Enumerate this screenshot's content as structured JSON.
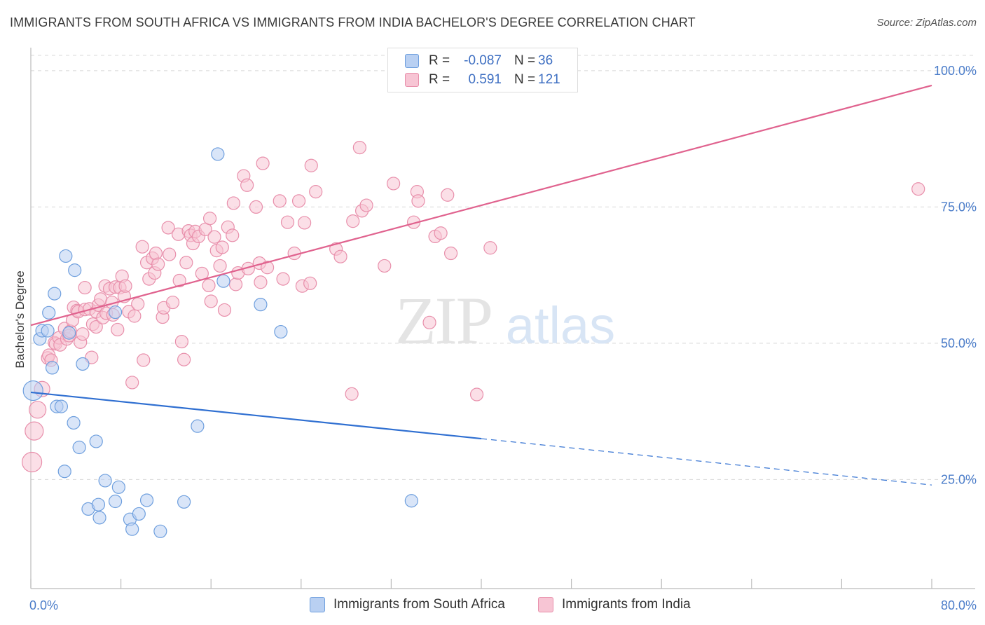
{
  "title": "IMMIGRANTS FROM SOUTH AFRICA VS IMMIGRANTS FROM INDIA BACHELOR'S DEGREE CORRELATION CHART",
  "source": "Source: ZipAtlas.com",
  "watermark": {
    "zip": "ZIP",
    "atlas": "atlas"
  },
  "colors": {
    "blue_fill": "#b9d0f2",
    "blue_stroke": "#6e9fde",
    "blue_line": "#2f6fd1",
    "pink_fill": "#f7c5d4",
    "pink_stroke": "#e88fab",
    "pink_line": "#e0628e",
    "grid": "#d8d8d8",
    "tick_text": "#4a7cc9"
  },
  "legend": {
    "rows": [
      {
        "r_label": "R =",
        "r_value": "-0.087",
        "n_label": "N =",
        "n_value": "36",
        "color": "#b9d0f2",
        "stroke": "#6e9fde"
      },
      {
        "r_label": "R =",
        "r_value": "0.591",
        "n_label": "N =",
        "n_value": "121",
        "color": "#f7c5d4",
        "stroke": "#e88fab"
      }
    ]
  },
  "chart_data": {
    "type": "scatter",
    "xlabel": "",
    "ylabel": "Bachelor's Degree",
    "xlim": [
      0,
      80
    ],
    "ylim": [
      5,
      105
    ],
    "x_tick_labels": [
      "0.0%",
      "80.0%"
    ],
    "y_ticks": [
      25,
      50,
      75,
      100
    ],
    "y_tick_labels": [
      "25.0%",
      "50.0%",
      "75.0%",
      "100.0%"
    ],
    "grid": true,
    "legend_position": "bottom",
    "series": [
      {
        "name": "Immigrants from South Africa",
        "color": "#b9d0f2",
        "trend": {
          "x": [
            0,
            40
          ],
          "y": [
            41,
            32.5
          ],
          "dashed_to": [
            80,
            24.0
          ]
        },
        "points": [
          [
            0.2,
            41.3,
            14
          ],
          [
            0.8,
            50.8,
            9
          ],
          [
            1.0,
            52.3,
            9
          ],
          [
            1.5,
            52.3,
            9
          ],
          [
            1.6,
            55.6,
            9
          ],
          [
            1.9,
            45.5,
            9
          ],
          [
            2.1,
            59.1,
            9
          ],
          [
            2.3,
            38.4,
            9
          ],
          [
            2.7,
            38.4,
            9
          ],
          [
            3.0,
            26.5,
            9
          ],
          [
            3.1,
            66.0,
            9
          ],
          [
            3.4,
            51.9,
            9
          ],
          [
            3.8,
            35.4,
            9
          ],
          [
            3.9,
            63.4,
            9
          ],
          [
            4.3,
            30.9,
            9
          ],
          [
            4.6,
            46.2,
            9
          ],
          [
            5.1,
            19.6,
            9
          ],
          [
            5.8,
            32.0,
            9
          ],
          [
            6.0,
            20.4,
            9
          ],
          [
            6.1,
            18.0,
            9
          ],
          [
            6.6,
            24.8,
            9
          ],
          [
            7.5,
            55.7,
            9
          ],
          [
            7.5,
            21.0,
            9
          ],
          [
            7.8,
            23.6,
            9
          ],
          [
            8.8,
            17.7,
            9
          ],
          [
            9.0,
            15.9,
            9
          ],
          [
            9.6,
            18.7,
            9
          ],
          [
            10.3,
            21.2,
            9
          ],
          [
            11.5,
            15.5,
            9
          ],
          [
            13.6,
            20.9,
            9
          ],
          [
            14.8,
            34.8,
            9
          ],
          [
            16.6,
            84.7,
            9
          ],
          [
            17.1,
            61.4,
            9
          ],
          [
            20.4,
            57.1,
            9
          ],
          [
            22.2,
            52.1,
            9
          ],
          [
            33.8,
            21.1,
            9
          ]
        ]
      },
      {
        "name": "Immigrants from India",
        "color": "#f7c5d4",
        "trend": {
          "x": [
            0,
            80
          ],
          "y": [
            53.3,
            97.3
          ]
        },
        "points": [
          [
            0.1,
            28.2,
            14
          ],
          [
            0.3,
            33.9,
            13
          ],
          [
            0.6,
            37.8,
            12
          ],
          [
            1.0,
            41.6,
            11
          ],
          [
            1.5,
            47.3,
            9
          ],
          [
            1.6,
            47.8,
            9
          ],
          [
            1.8,
            46.9,
            9
          ],
          [
            2.1,
            50.1,
            9
          ],
          [
            2.2,
            49.9,
            9
          ],
          [
            2.5,
            51.0,
            9
          ],
          [
            2.6,
            49.7,
            9
          ],
          [
            3.0,
            52.7,
            9
          ],
          [
            3.2,
            50.8,
            9
          ],
          [
            3.4,
            51.4,
            9
          ],
          [
            3.5,
            52.2,
            9
          ],
          [
            3.7,
            54.2,
            9
          ],
          [
            3.8,
            56.6,
            9
          ],
          [
            4.1,
            56.0,
            9
          ],
          [
            4.2,
            55.8,
            9
          ],
          [
            4.4,
            50.2,
            9
          ],
          [
            4.6,
            51.7,
            9
          ],
          [
            4.8,
            56.2,
            9
          ],
          [
            4.8,
            60.2,
            9
          ],
          [
            5.2,
            56.3,
            9
          ],
          [
            5.4,
            47.4,
            9
          ],
          [
            5.5,
            53.5,
            9
          ],
          [
            5.8,
            53.0,
            9
          ],
          [
            5.8,
            55.8,
            9
          ],
          [
            6.0,
            57.0,
            9
          ],
          [
            6.2,
            58.1,
            9
          ],
          [
            6.4,
            54.7,
            9
          ],
          [
            6.6,
            60.5,
            9
          ],
          [
            6.7,
            55.5,
            9
          ],
          [
            7.0,
            60.0,
            9
          ],
          [
            7.2,
            57.5,
            9
          ],
          [
            7.3,
            55.2,
            9
          ],
          [
            7.5,
            60.3,
            9
          ],
          [
            7.7,
            52.5,
            9
          ],
          [
            7.9,
            60.2,
            9
          ],
          [
            8.1,
            62.3,
            9
          ],
          [
            8.3,
            58.6,
            9
          ],
          [
            8.4,
            60.5,
            9
          ],
          [
            8.7,
            55.8,
            9
          ],
          [
            9.0,
            42.8,
            9
          ],
          [
            9.2,
            55.0,
            9
          ],
          [
            9.5,
            57.2,
            9
          ],
          [
            9.9,
            67.7,
            9
          ],
          [
            10.0,
            46.9,
            9
          ],
          [
            10.3,
            64.8,
            9
          ],
          [
            10.5,
            61.8,
            9
          ],
          [
            10.8,
            65.6,
            9
          ],
          [
            11.0,
            62.9,
            9
          ],
          [
            11.1,
            66.5,
            9
          ],
          [
            11.3,
            64.5,
            9
          ],
          [
            11.7,
            54.8,
            9
          ],
          [
            11.8,
            56.5,
            9
          ],
          [
            12.2,
            71.2,
            9
          ],
          [
            12.3,
            66.3,
            9
          ],
          [
            12.6,
            57.5,
            9
          ],
          [
            13.1,
            70.0,
            9
          ],
          [
            13.2,
            61.5,
            9
          ],
          [
            13.4,
            50.3,
            9
          ],
          [
            13.6,
            47.0,
            9
          ],
          [
            13.8,
            64.8,
            9
          ],
          [
            14.0,
            70.6,
            9
          ],
          [
            14.2,
            69.8,
            9
          ],
          [
            14.4,
            68.3,
            9
          ],
          [
            14.6,
            70.5,
            9
          ],
          [
            14.9,
            69.6,
            9
          ],
          [
            15.2,
            62.8,
            9
          ],
          [
            15.5,
            70.9,
            9
          ],
          [
            15.8,
            60.6,
            9
          ],
          [
            15.9,
            72.9,
            9
          ],
          [
            16.0,
            57.7,
            9
          ],
          [
            16.3,
            69.5,
            9
          ],
          [
            16.5,
            67.0,
            9
          ],
          [
            16.8,
            64.2,
            9
          ],
          [
            17.0,
            67.6,
            9
          ],
          [
            17.2,
            56.1,
            9
          ],
          [
            17.5,
            71.3,
            9
          ],
          [
            17.9,
            69.8,
            9
          ],
          [
            18.0,
            75.7,
            9
          ],
          [
            18.2,
            60.8,
            9
          ],
          [
            18.4,
            62.9,
            9
          ],
          [
            18.9,
            80.7,
            9
          ],
          [
            19.2,
            79.0,
            9
          ],
          [
            19.3,
            63.7,
            9
          ],
          [
            20.0,
            75.0,
            9
          ],
          [
            20.3,
            64.7,
            9
          ],
          [
            20.4,
            61.2,
            9
          ],
          [
            20.6,
            83.0,
            9
          ],
          [
            21.0,
            63.9,
            9
          ],
          [
            22.1,
            76.1,
            9
          ],
          [
            22.4,
            61.8,
            9
          ],
          [
            22.8,
            72.2,
            9
          ],
          [
            23.4,
            66.5,
            9
          ],
          [
            23.8,
            76.1,
            9
          ],
          [
            24.1,
            60.5,
            9
          ],
          [
            24.3,
            72.1,
            9
          ],
          [
            24.8,
            61.0,
            9
          ],
          [
            24.9,
            82.6,
            9
          ],
          [
            25.3,
            77.8,
            9
          ],
          [
            27.1,
            67.3,
            9
          ],
          [
            27.5,
            65.9,
            9
          ],
          [
            28.5,
            40.7,
            9
          ],
          [
            28.6,
            72.4,
            9
          ],
          [
            29.2,
            85.9,
            9
          ],
          [
            29.4,
            74.3,
            9
          ],
          [
            29.8,
            75.3,
            9
          ],
          [
            31.4,
            64.2,
            9
          ],
          [
            32.2,
            79.3,
            9
          ],
          [
            34.0,
            72.2,
            9
          ],
          [
            34.3,
            77.8,
            9
          ],
          [
            34.4,
            76.1,
            9
          ],
          [
            35.4,
            53.8,
            9
          ],
          [
            35.9,
            69.6,
            9
          ],
          [
            36.4,
            70.2,
            9
          ],
          [
            37.0,
            77.2,
            9
          ],
          [
            37.3,
            66.5,
            9
          ],
          [
            39.6,
            40.6,
            9
          ],
          [
            40.8,
            67.5,
            9
          ],
          [
            78.8,
            78.3,
            9
          ]
        ]
      }
    ]
  }
}
